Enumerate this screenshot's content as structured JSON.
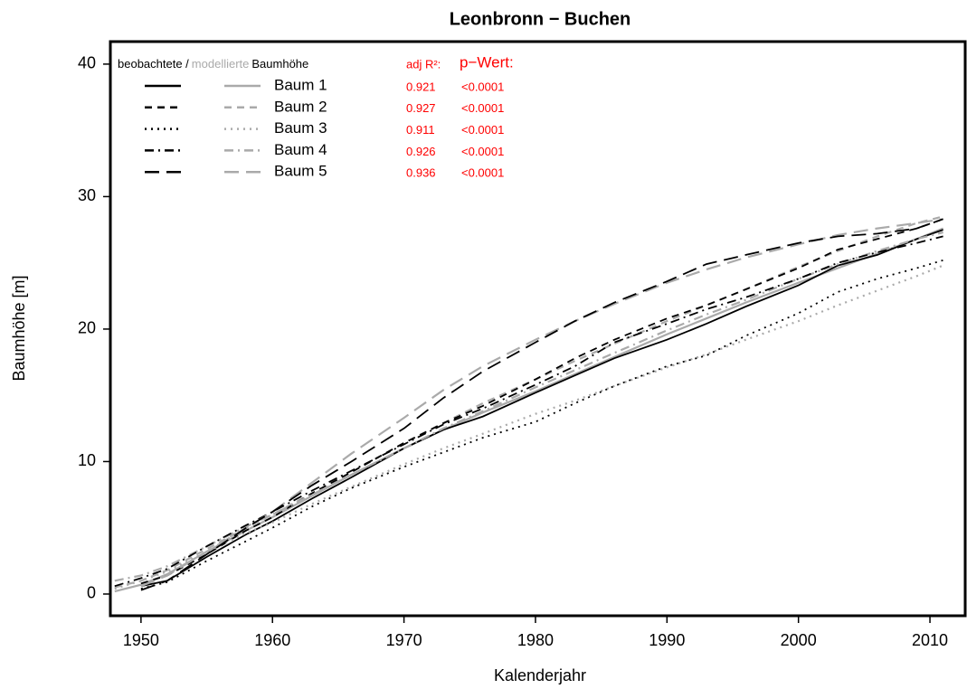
{
  "chart_data": {
    "type": "line",
    "title": "Leonbronn − Buchen",
    "x_label": "Kalenderjahr",
    "y_label": "Baumhöhe [m]",
    "legend_header": {
      "observed": "beobachtete /",
      "modelled": "modellierte",
      "suffix": "Baumhöhe",
      "r2": "adj R²:",
      "p": "p−Wert:"
    },
    "observed_color": "#000000",
    "model_color": "#aaaaaa",
    "annotation_color": "#ff0000",
    "xlim": [
      1947.67,
      2012.68
    ],
    "ylim": [
      -1.64,
      41.7
    ],
    "xticks": [
      1950,
      1960,
      1970,
      1980,
      1990,
      2000,
      2010
    ],
    "yticks": [
      0,
      10,
      20,
      30,
      40
    ],
    "x": [
      1948,
      1950,
      1952,
      1955,
      1958,
      1960,
      1963,
      1966,
      1970,
      1973,
      1976,
      1980,
      1983,
      1986,
      1990,
      1993,
      1996,
      2000,
      2003,
      2006,
      2009,
      2011
    ],
    "series": [
      {
        "name": "Baum 1",
        "linestyle": "solid",
        "adj_r2": "0.921",
        "p_value": "<0.0001",
        "values": [
          null,
          0.6,
          1.0,
          2.8,
          4.5,
          5.5,
          7.2,
          8.8,
          11.0,
          12.4,
          13.4,
          15.2,
          16.5,
          17.8,
          19.2,
          20.4,
          21.7,
          23.3,
          24.8,
          25.6,
          26.8,
          27.5
        ],
        "model_values": [
          0.2,
          0.7,
          1.5,
          3.2,
          4.8,
          5.8,
          7.4,
          9.0,
          11.0,
          12.4,
          13.7,
          15.3,
          16.6,
          17.9,
          19.6,
          20.8,
          22.0,
          23.5,
          24.6,
          25.7,
          26.8,
          27.6
        ]
      },
      {
        "name": "Baum 2",
        "linestyle": "dashed",
        "adj_r2": "0.927",
        "p_value": "<0.0001",
        "values": [
          null,
          0.8,
          1.4,
          3.0,
          4.8,
          5.8,
          7.6,
          9.2,
          11.4,
          12.9,
          14.2,
          16.2,
          17.8,
          19.2,
          20.8,
          21.8,
          23.0,
          24.6,
          26.0,
          26.8,
          27.6,
          28.3
        ],
        "model_values": [
          0.5,
          1.0,
          1.8,
          3.4,
          5.0,
          6.0,
          7.6,
          9.2,
          11.4,
          12.9,
          14.4,
          16.2,
          17.6,
          18.9,
          20.6,
          21.8,
          23.0,
          24.7,
          25.9,
          27.0,
          28.0,
          28.5
        ]
      },
      {
        "name": "Baum 3",
        "linestyle": "dotted",
        "adj_r2": "0.911",
        "p_value": "<0.0001",
        "values": [
          null,
          0.4,
          0.9,
          2.5,
          4.0,
          5.0,
          6.6,
          8.0,
          9.6,
          10.7,
          11.8,
          13.0,
          14.4,
          15.7,
          17.2,
          18.0,
          19.5,
          21.2,
          22.8,
          23.8,
          24.6,
          25.2
        ],
        "model_values": [
          0.4,
          1.0,
          1.7,
          3.2,
          4.6,
          5.4,
          6.8,
          8.1,
          9.8,
          11.0,
          12.1,
          13.6,
          14.6,
          15.7,
          17.1,
          18.1,
          19.2,
          20.6,
          21.8,
          22.9,
          24.0,
          24.8
        ]
      },
      {
        "name": "Baum 4",
        "linestyle": "dashdot",
        "adj_r2": "0.926",
        "p_value": "<0.0001",
        "values": [
          0.6,
          1.2,
          1.9,
          3.6,
          5.2,
          6.2,
          7.8,
          9.3,
          11.3,
          12.8,
          14.0,
          15.8,
          17.2,
          19.0,
          20.4,
          21.5,
          22.4,
          23.8,
          25.0,
          25.8,
          26.5,
          27.0
        ],
        "model_values": [
          1.0,
          1.4,
          2.1,
          3.6,
          5.1,
          6.0,
          7.5,
          9.0,
          11.0,
          12.5,
          13.8,
          15.6,
          16.9,
          18.2,
          19.9,
          21.1,
          22.2,
          23.8,
          24.9,
          25.9,
          26.8,
          27.3
        ]
      },
      {
        "name": "Baum 5",
        "linestyle": "longdash",
        "adj_r2": "0.936",
        "p_value": "<0.0001",
        "values": [
          null,
          0.3,
          1.0,
          3.0,
          5.0,
          6.2,
          8.2,
          10.0,
          12.5,
          14.8,
          16.8,
          19.0,
          20.6,
          22.0,
          23.6,
          24.9,
          25.6,
          26.5,
          27.0,
          27.2,
          27.6,
          28.3
        ],
        "model_values": [
          null,
          0.6,
          1.4,
          3.2,
          5.0,
          6.2,
          8.4,
          10.6,
          13.3,
          15.4,
          17.2,
          19.2,
          20.6,
          21.9,
          23.5,
          24.5,
          25.4,
          26.4,
          27.1,
          27.6,
          28.0,
          28.3
        ]
      }
    ]
  }
}
